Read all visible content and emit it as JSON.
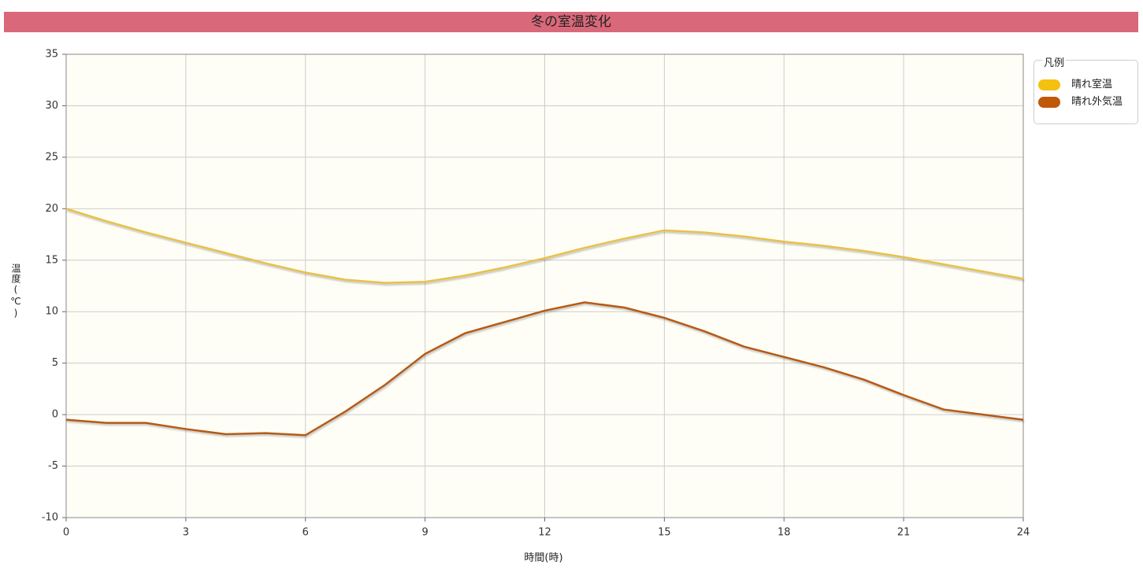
{
  "chart_data": {
    "type": "line",
    "title": "冬の室温変化",
    "x_label": "時間(時)",
    "y_label": "温度(℃)",
    "legend_title": "凡例",
    "x": [
      0,
      1,
      2,
      3,
      4,
      5,
      6,
      7,
      8,
      9,
      10,
      11,
      12,
      13,
      14,
      15,
      16,
      17,
      18,
      19,
      20,
      21,
      22,
      23,
      24
    ],
    "series": [
      {
        "name": "晴れ室温",
        "color": "#f5c010",
        "line_color": "#e9c048",
        "values": [
          20,
          18.8,
          17.7,
          16.7,
          15.7,
          14.7,
          13.8,
          13.1,
          12.8,
          12.9,
          13.5,
          14.3,
          15.2,
          16.2,
          17.1,
          17.9,
          17.7,
          17.3,
          16.8,
          16.4,
          15.9,
          15.3,
          14.6,
          13.9,
          13.2
        ]
      },
      {
        "name": "晴れ外気温",
        "color": "#c05808",
        "line_color": "#b55a18",
        "values": [
          -0.5,
          -0.8,
          -0.8,
          -1.4,
          -1.9,
          -1.8,
          -2.0,
          0.3,
          2.9,
          5.9,
          7.9,
          9.0,
          10.1,
          10.9,
          10.4,
          9.4,
          8.1,
          6.6,
          5.6,
          4.6,
          3.4,
          1.9,
          0.5,
          0.0,
          -0.5
        ]
      }
    ],
    "xlim": [
      0,
      24
    ],
    "xticks": [
      0,
      3,
      6,
      9,
      12,
      15,
      18,
      21,
      24
    ],
    "ylim": [
      -10,
      35
    ],
    "yticks": [
      -10,
      -5,
      0,
      5,
      10,
      15,
      20,
      25,
      30,
      35
    ],
    "grid": true
  }
}
